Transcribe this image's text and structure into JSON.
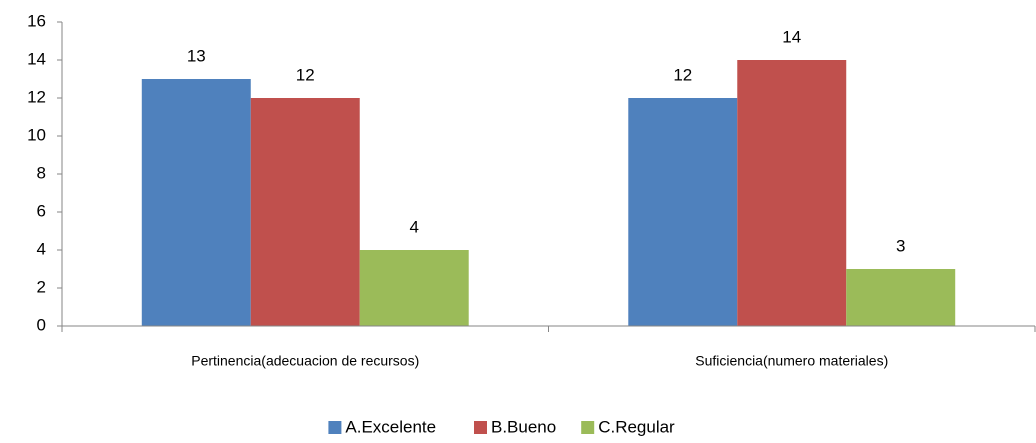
{
  "chart_data": {
    "type": "bar",
    "categories": [
      "Pertinencia(adecuacion de recursos)",
      "Suficiencia(numero materiales)"
    ],
    "series": [
      {
        "name": "A.Excelente",
        "color": "#4f81bd",
        "values": [
          13,
          12
        ]
      },
      {
        "name": "B.Bueno",
        "color": "#c0504d",
        "values": [
          12,
          14
        ]
      },
      {
        "name": "C.Regular",
        "color": "#9bbb59",
        "values": [
          4,
          3
        ]
      }
    ],
    "ylim": [
      0,
      16
    ],
    "yticks": [
      0,
      2,
      4,
      6,
      8,
      10,
      12,
      14,
      16
    ],
    "grid": false,
    "legend": "bottom"
  }
}
